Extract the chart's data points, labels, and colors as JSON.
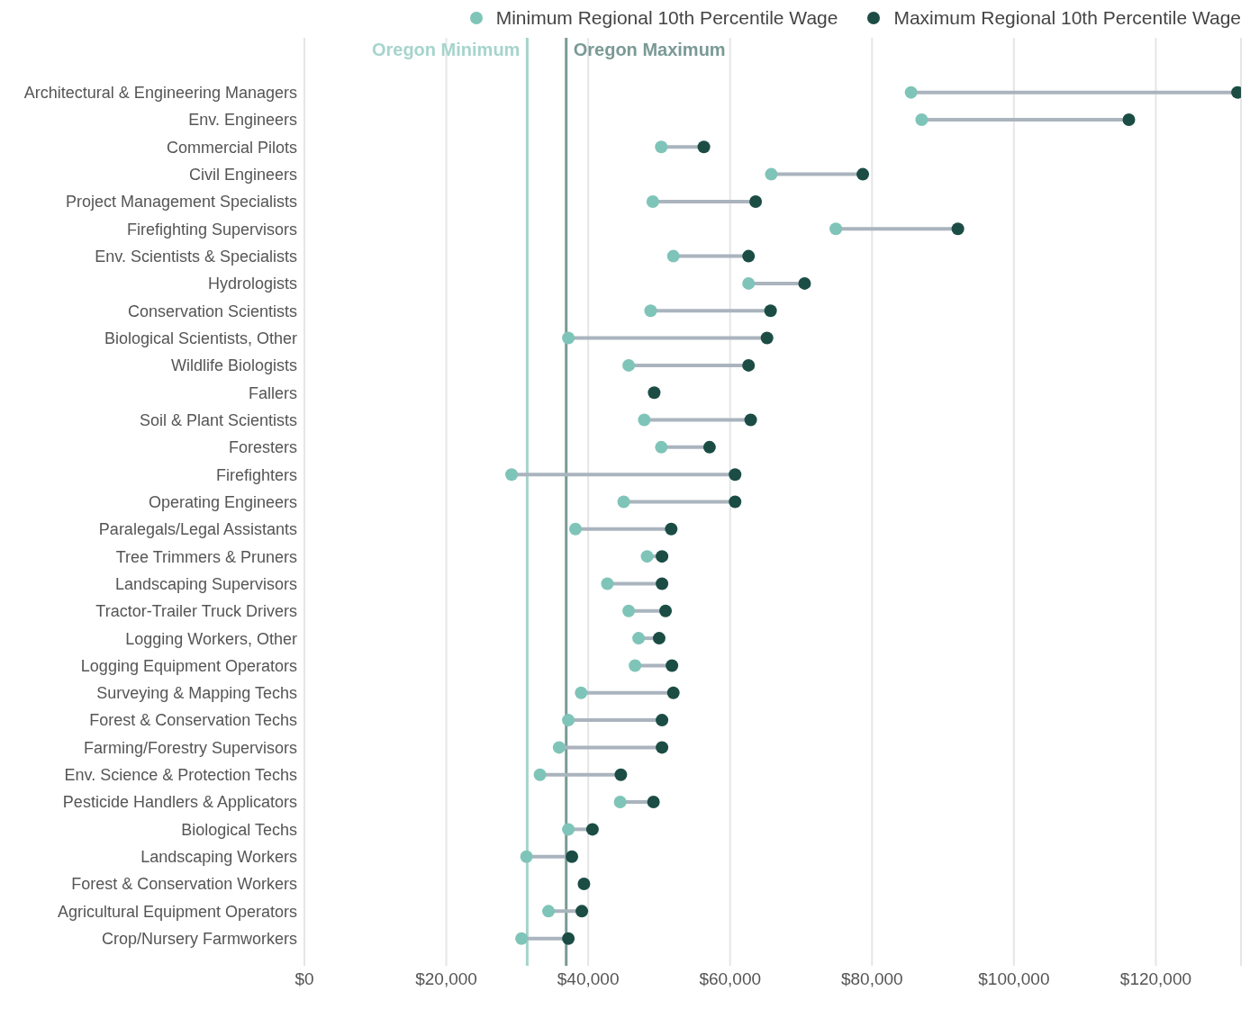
{
  "chart_data": {
    "type": "scatter",
    "orientation": "horizontal",
    "categories": [
      "Architectural & Engineering Managers",
      "Env. Engineers",
      "Commercial Pilots",
      "Civil Engineers",
      "Project Management Specialists",
      "Firefighting Supervisors",
      "Env. Scientists & Specialists",
      "Hydrologists",
      "Conservation Scientists",
      "Biological Scientists, Other",
      "Wildlife Biologists",
      "Fallers",
      "Soil & Plant Scientists",
      "Foresters",
      "Firefighters",
      "Operating Engineers",
      "Paralegals/Legal Assistants",
      "Tree Trimmers & Pruners",
      "Landscaping Supervisors",
      "Tractor-Trailer Truck Drivers",
      "Logging Workers, Other",
      "Logging Equipment Operators",
      "Surveying & Mapping Techs",
      "Forest & Conservation Techs",
      "Farming/Forestry Supervisors",
      "Env. Science & Protection Techs",
      "Pesticide Handlers & Applicators",
      "Biological Techs",
      "Landscaping Workers",
      "Forest & Conservation Workers",
      "Agricultural Equipment Operators",
      "Crop/Nursery Farmworkers"
    ],
    "series": [
      {
        "name": "Minimum Regional 10th Percentile Wage",
        "color": "#7fc4b8",
        "values": [
          85500,
          87000,
          50300,
          65800,
          49100,
          74900,
          52000,
          62600,
          48800,
          37200,
          45700,
          null,
          47900,
          50300,
          29200,
          45000,
          38200,
          48300,
          42700,
          45700,
          47100,
          46600,
          39000,
          37200,
          35900,
          33200,
          44500,
          37200,
          31300,
          null,
          34400,
          30600
        ]
      },
      {
        "name": "Maximum Regional 10th Percentile Wage",
        "color": "#1b4d45",
        "values": [
          131500,
          116200,
          56300,
          78700,
          63600,
          92100,
          62600,
          70500,
          65700,
          65200,
          62600,
          49300,
          62900,
          57100,
          60700,
          60700,
          51700,
          50400,
          50400,
          50900,
          50000,
          51800,
          52000,
          50400,
          50400,
          44600,
          49200,
          40600,
          37700,
          39400,
          39100,
          37200
        ]
      }
    ],
    "xlim": [
      0,
      132000
    ],
    "xticks": [
      {
        "value": 0,
        "label": "$0"
      },
      {
        "value": 20000,
        "label": "$20,000"
      },
      {
        "value": 40000,
        "label": "$40,000"
      },
      {
        "value": 60000,
        "label": "$60,000"
      },
      {
        "value": 80000,
        "label": "$80,000"
      },
      {
        "value": 100000,
        "label": "$100,000"
      },
      {
        "value": 120000,
        "label": "$120,000"
      }
    ],
    "ref_lines": [
      {
        "axis": "x",
        "value": 31400,
        "label": "Oregon Minimum",
        "color": "#a6d4cc"
      },
      {
        "axis": "x",
        "value": 36900,
        "label": "Oregon Maximum",
        "color": "#7a9a94"
      }
    ],
    "grid": "x",
    "legend": "top right",
    "marker": "circle"
  }
}
